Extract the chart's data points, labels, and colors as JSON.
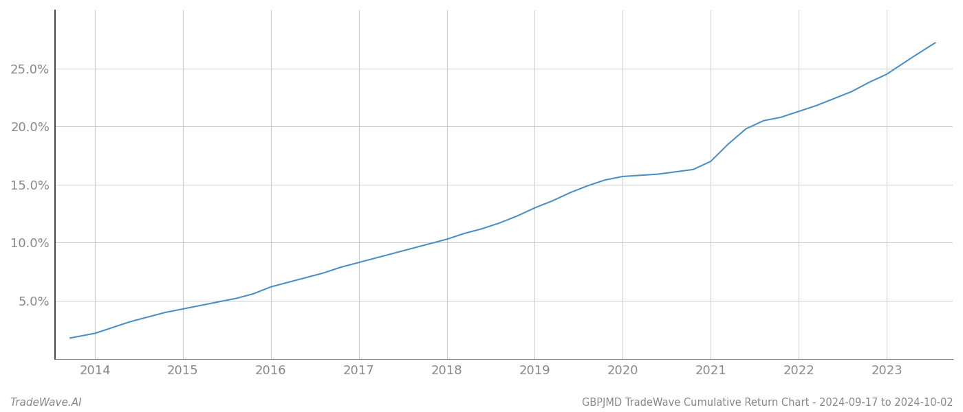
{
  "title": "GBPJMD TradeWave Cumulative Return Chart - 2024-09-17 to 2024-10-02",
  "watermark": "TradeWave.AI",
  "line_color": "#4a90c4",
  "background_color": "#ffffff",
  "grid_color": "#c8c8c8",
  "x_years": [
    2014,
    2015,
    2016,
    2017,
    2018,
    2019,
    2020,
    2021,
    2022,
    2023
  ],
  "x_data": [
    2013.72,
    2014.0,
    2014.2,
    2014.4,
    2014.6,
    2014.8,
    2015.0,
    2015.2,
    2015.4,
    2015.6,
    2015.8,
    2016.0,
    2016.2,
    2016.4,
    2016.6,
    2016.8,
    2017.0,
    2017.2,
    2017.4,
    2017.6,
    2017.8,
    2018.0,
    2018.2,
    2018.4,
    2018.6,
    2018.8,
    2019.0,
    2019.2,
    2019.4,
    2019.6,
    2019.8,
    2020.0,
    2020.2,
    2020.4,
    2020.6,
    2020.8,
    2021.0,
    2021.2,
    2021.4,
    2021.6,
    2021.8,
    2022.0,
    2022.2,
    2022.4,
    2022.6,
    2022.8,
    2023.0,
    2023.3,
    2023.55
  ],
  "y_data": [
    1.8,
    2.2,
    2.7,
    3.2,
    3.6,
    4.0,
    4.3,
    4.6,
    4.9,
    5.2,
    5.6,
    6.2,
    6.6,
    7.0,
    7.4,
    7.9,
    8.3,
    8.7,
    9.1,
    9.5,
    9.9,
    10.3,
    10.8,
    11.2,
    11.7,
    12.3,
    13.0,
    13.6,
    14.3,
    14.9,
    15.4,
    15.7,
    15.8,
    15.9,
    16.1,
    16.3,
    17.0,
    18.5,
    19.8,
    20.5,
    20.8,
    21.3,
    21.8,
    22.4,
    23.0,
    23.8,
    24.5,
    26.0,
    27.2
  ],
  "ylim": [
    0,
    30
  ],
  "yticks": [
    5.0,
    10.0,
    15.0,
    20.0,
    25.0
  ],
  "xlim": [
    2013.55,
    2023.75
  ],
  "title_fontsize": 10.5,
  "watermark_fontsize": 11,
  "tick_fontsize": 13,
  "tick_color": "#888888",
  "left_spine_color": "#222222",
  "bottom_spine_color": "#888888"
}
